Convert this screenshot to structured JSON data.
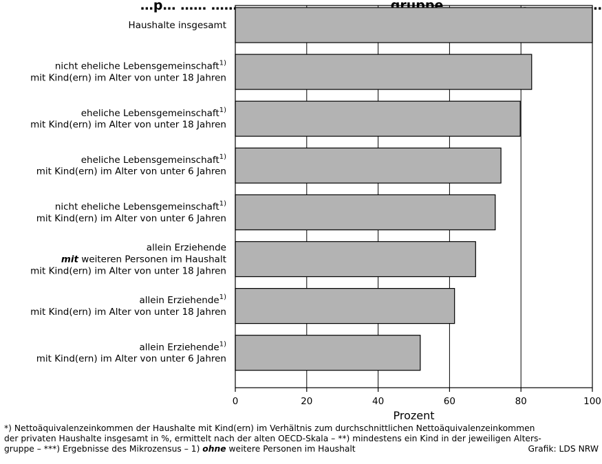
{
  "chart_data": {
    "type": "bar",
    "orientation": "horizontal",
    "title": "…p… …… …… …… …… …… …… ……gruppe … …… ……, …… …… ……typen …)",
    "categories": [
      [
        {
          "t": "Haushalte insgesamt"
        }
      ],
      [
        {
          "t": "nicht eheliche Lebensgemeinschaft",
          "sup": "1)"
        },
        {
          "t": "mit Kind(ern) im Alter von unter 18 Jahren"
        }
      ],
      [
        {
          "t": "eheliche Lebensgemeinschaft",
          "sup": "1)"
        },
        {
          "t": "mit Kind(ern) im Alter von unter 18 Jahren"
        }
      ],
      [
        {
          "t": "eheliche Lebensgemeinschaft",
          "sup": "1)"
        },
        {
          "t": "mit Kind(ern) im Alter von unter 6 Jahren"
        }
      ],
      [
        {
          "t": "nicht eheliche Lebensgemeinschaft",
          "sup": "1)"
        },
        {
          "t": "mit Kind(ern) im Alter von unter 6 Jahren"
        }
      ],
      [
        {
          "t": "allein Erziehende"
        },
        {
          "b": "mit",
          "t": " weiteren Personen im Haushalt"
        },
        {
          "t": "mit Kind(ern) im Alter von unter 18 Jahren"
        }
      ],
      [
        {
          "t": "allein Erziehende",
          "sup": "1)"
        },
        {
          "t": "mit Kind(ern) im Alter von unter 18 Jahren"
        }
      ],
      [
        {
          "t": "allein Erziehende",
          "sup": "1)"
        },
        {
          "t": "mit Kind(ern) im Alter von unter 6 Jahren"
        }
      ]
    ],
    "values": [
      100,
      83,
      79.8,
      74.4,
      72.8,
      67.3,
      61.4,
      51.8
    ],
    "xlim": [
      0,
      100
    ],
    "xticks": [
      0,
      20,
      40,
      60,
      80,
      100
    ],
    "xlabel": "Prozent",
    "ylabel": "",
    "grid": true,
    "colors": {
      "bar": "#b3b3b3",
      "edge": "#000000"
    }
  },
  "footnote": {
    "line1": "*) Nettoäquivalenzeinkommen der Haushalte mit Kind(ern) im Verhältnis zum durchschnittlichen Nettoäquivalenzeinkommen",
    "line2": "der privaten Haushalte insgesamt in %, ermittelt nach der alten OECD-Skala – **) mindestens ein Kind in der jeweiligen Alters-",
    "line3_a": "gruppe – ***) Ergebnisse des Mikrozensus – 1) ",
    "line3_b": "ohne",
    "line3_c": " weitere Personen im Haushalt",
    "credit": "Grafik: LDS NRW"
  }
}
